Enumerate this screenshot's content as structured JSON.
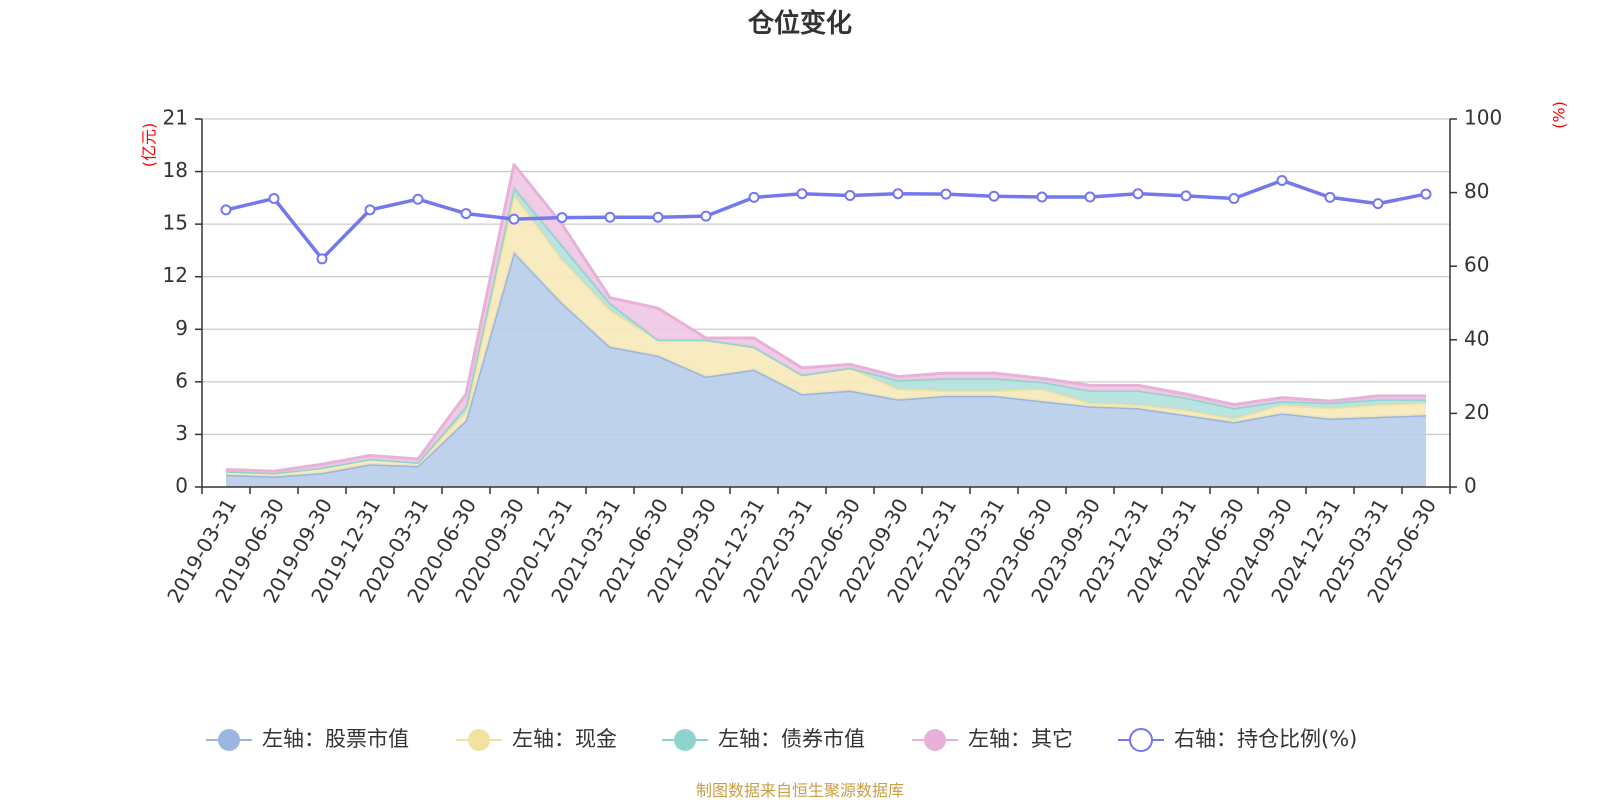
{
  "chart_data": {
    "type": "area",
    "title": "仓位变化",
    "left_unit": "(亿元)",
    "right_unit": "(%)",
    "source": "制图数据来自恒生聚源数据库",
    "categories": [
      "2019-03-31",
      "2019-06-30",
      "2019-09-30",
      "2019-12-31",
      "2020-03-31",
      "2020-06-30",
      "2020-09-30",
      "2020-12-31",
      "2021-03-31",
      "2021-06-30",
      "2021-09-30",
      "2021-12-31",
      "2022-03-31",
      "2022-06-30",
      "2022-09-30",
      "2022-12-31",
      "2023-03-31",
      "2023-06-30",
      "2023-09-30",
      "2023-12-31",
      "2024-03-31",
      "2024-06-30",
      "2024-09-30",
      "2024-12-31",
      "2025-03-31",
      "2025-06-30"
    ],
    "left_axis": {
      "min": 0,
      "max": 21,
      "ticks": [
        0,
        3,
        6,
        9,
        12,
        15,
        18,
        21
      ]
    },
    "right_axis": {
      "min": 0,
      "max": 100,
      "ticks": [
        0,
        20,
        40,
        60,
        80,
        100
      ]
    },
    "stacked": true,
    "series": [
      {
        "name": "左轴：股票市值",
        "axis": "left",
        "kind": "area",
        "color": "#9ab5df",
        "fill": "#b8cdea",
        "values": [
          0.7,
          0.6,
          0.8,
          1.3,
          1.2,
          3.8,
          13.4,
          10.5,
          8.0,
          7.5,
          6.3,
          6.7,
          5.3,
          5.5,
          5.0,
          5.2,
          5.2,
          4.9,
          4.6,
          4.5,
          4.1,
          3.7,
          4.2,
          3.9,
          4.0,
          4.1
        ]
      },
      {
        "name": "左轴：现金",
        "axis": "left",
        "kind": "area",
        "color": "#f3e19f",
        "fill": "#f7e9b8",
        "values": [
          0.2,
          0.2,
          0.3,
          0.3,
          0.2,
          0.5,
          3.3,
          2.5,
          2.1,
          0.9,
          2.1,
          1.3,
          1.1,
          1.3,
          0.6,
          0.3,
          0.3,
          0.7,
          0.2,
          0.2,
          0.3,
          0.2,
          0.5,
          0.6,
          0.7,
          0.7
        ]
      },
      {
        "name": "左轴：债券市值",
        "axis": "left",
        "kind": "area",
        "color": "#8fd3cd",
        "fill": "#b2e1dd",
        "values": [
          0,
          0,
          0,
          0,
          0,
          0.3,
          0.4,
          0.8,
          0.4,
          0.0,
          0,
          0,
          0,
          0,
          0.5,
          0.7,
          0.7,
          0.4,
          0.7,
          0.8,
          0.7,
          0.6,
          0.2,
          0.3,
          0.3,
          0.2
        ]
      },
      {
        "name": "左轴：其它",
        "axis": "left",
        "kind": "area",
        "color": "#e7b1d8",
        "fill": "#efc7e4",
        "values": [
          0.1,
          0.1,
          0.2,
          0.2,
          0.2,
          0.7,
          1.3,
          1.2,
          0.3,
          1.8,
          0.1,
          0.5,
          0.4,
          0.2,
          0.2,
          0.3,
          0.3,
          0.2,
          0.3,
          0.3,
          0.2,
          0.2,
          0.2,
          0.1,
          0.2,
          0.2
        ]
      },
      {
        "name": "右轴：持仓比例(%)",
        "axis": "right",
        "kind": "line",
        "color": "#7378ee",
        "values": [
          75.3,
          78.4,
          62.0,
          75.3,
          78.2,
          74.3,
          72.8,
          73.2,
          73.3,
          73.3,
          73.6,
          78.7,
          79.7,
          79.2,
          79.7,
          79.6,
          79.0,
          78.8,
          78.8,
          79.7,
          79.1,
          78.4,
          83.3,
          78.7,
          77.0,
          79.6
        ]
      }
    ]
  }
}
